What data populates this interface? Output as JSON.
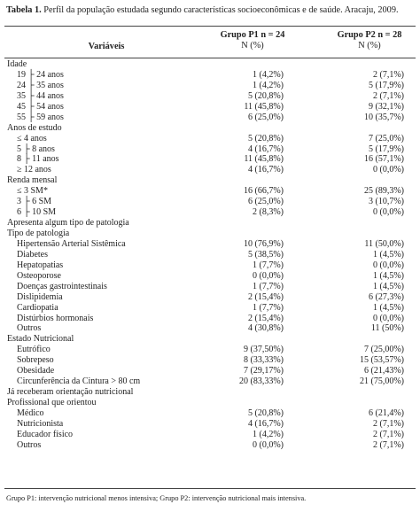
{
  "caption": {
    "label": "Tabela 1.",
    "text": "Perfil da população estudada segundo características socioeconômicas e de saúde. Aracaju, 2009."
  },
  "header": {
    "variable": "Variáveis",
    "group1": "Grupo P1 n = 24",
    "group1_unit": "N (%)",
    "group2": "Grupo P2 n = 28",
    "group2_unit": "N (%)"
  },
  "table": {
    "rows": [
      [
        "Idade"
      ],
      [
        "19 ├ 24 anos",
        "1 (4,2%)",
        "2 (7,1%)"
      ],
      [
        "24 ├ 35 anos",
        "1 (4,2%)",
        "5 (17,9%)"
      ],
      [
        "35 ├ 44 anos",
        "5 (20,8%)",
        "2 (7,1%)"
      ],
      [
        "45 ├ 54 anos",
        "11 (45,8%)",
        "9 (32,1%)"
      ],
      [
        "55 ├ 59 anos",
        "6 (25,0%)",
        "10 (35,7%)"
      ],
      [
        "Anos de estudo"
      ],
      [
        "≤ 4 anos",
        "5 (20,8%)",
        "7 (25,0%)"
      ],
      [
        "5 ├ 8 anos",
        "4 (16,7%)",
        "5 (17,9%)"
      ],
      [
        "8 ├ 11 anos",
        "11 (45,8%)",
        "16 (57,1%)"
      ],
      [
        "≥ 12 anos",
        "4 (16,7%)",
        "0 (0,0%)"
      ],
      [
        "Renda mensal"
      ],
      [
        "≤ 3 SM*",
        "16 (66,7%)",
        "25 (89,3%)"
      ],
      [
        "3 ├ 6 SM",
        "6 (25,0%)",
        "3 (10,7%)"
      ],
      [
        "6 ├ 10 SM",
        "2 (8,3%)",
        "0 (0,0%)"
      ],
      [
        "Apresenta algum tipo de patologia"
      ],
      [
        "Tipo de patologia"
      ],
      [
        "Hipertensão Arterial Sistêmica",
        "10 (76,9%)",
        "11 (50,0%)"
      ],
      [
        "Diabetes",
        "5 (38,5%)",
        "1 (4,5%)"
      ],
      [
        "Hepatopatias",
        "1 (7,7%)",
        "0 (0,0%)"
      ],
      [
        "Osteoporose",
        "0 (0,0%)",
        "1 (4,5%)"
      ],
      [
        "Doenças gastrointestinais",
        "1 (7,7%)",
        "1 (4,5%)"
      ],
      [
        "Dislipidemia",
        "2 (15,4%)",
        "6 (27,3%)"
      ],
      [
        "Cardiopatia",
        "1 (7,7%)",
        "1 (4,5%)"
      ],
      [
        "Distúrbios hormonais",
        "2 (15,4%)",
        "0 (0,0%)"
      ],
      [
        "Outros",
        "4 (30,8%)",
        "11 (50%)"
      ],
      [
        "Estado Nutricional"
      ],
      [
        "Eutrófico",
        "9 (37,50%)",
        "7 (25,00%)"
      ],
      [
        "Sobrepeso",
        "8 (33,33%)",
        "15 (53,57%)"
      ],
      [
        "Obesidade",
        "7 (29,17%)",
        "6 (21,43%)"
      ],
      [
        "Circunferência da Cintura > 80 cm",
        "20 (83,33%)",
        "21 (75,00%)"
      ],
      [
        "Já receberam orientação nutricional"
      ],
      [
        "Profissional que orientou"
      ],
      [
        "Médico",
        "5 (20,8%)",
        "6 (21,4%)"
      ],
      [
        "Nutricionista",
        "4 (16,7%)",
        "2 (7,1%)"
      ],
      [
        "Educador físico",
        "1 (4,2%)",
        "2 (7,1%)"
      ],
      [
        "Outros",
        "0 (0,0%)",
        "2 (7,1%)"
      ]
    ]
  },
  "footnote": "Grupo P1: intervenção nutricional menos intensiva; Grupo P2: intervenção nutricional mais intensiva."
}
